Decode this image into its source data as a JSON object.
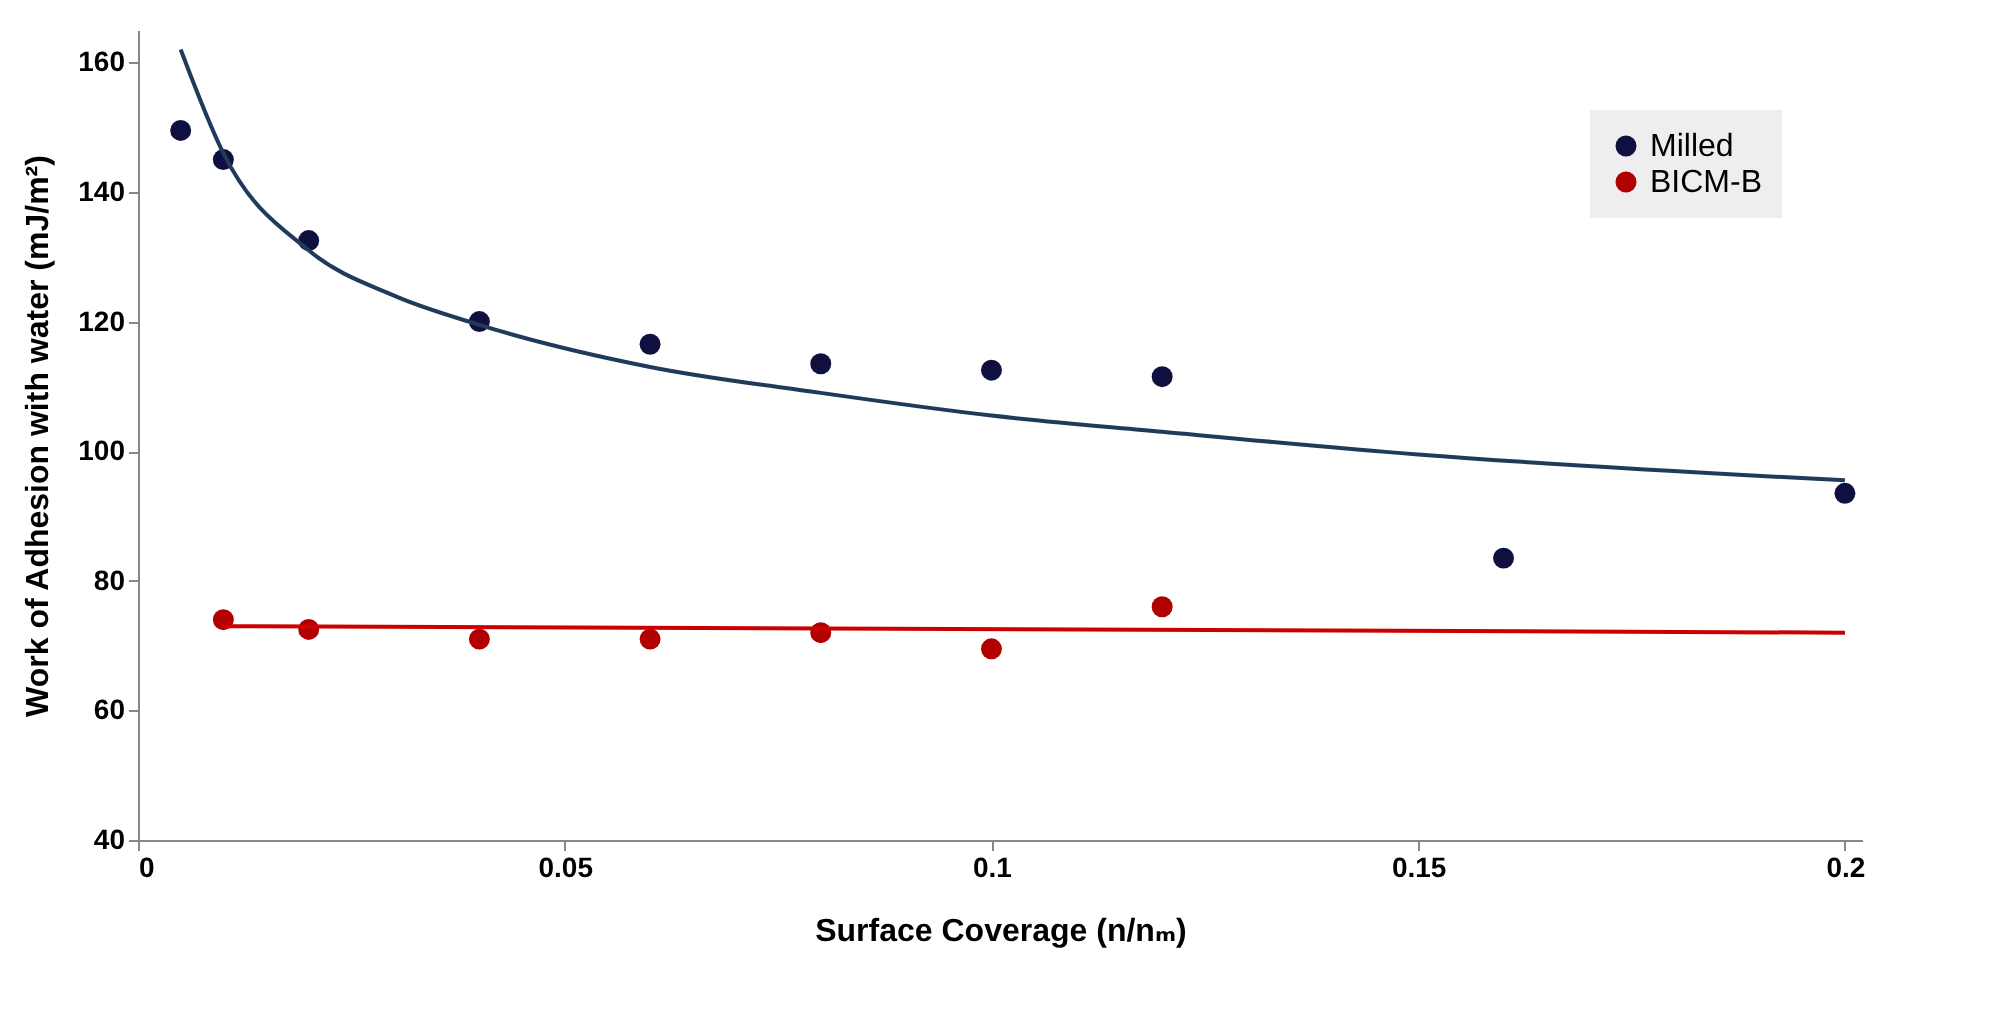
{
  "chart_data": {
    "type": "scatter",
    "xlabel": "Surface Coverage (n/nₘ)",
    "ylabel": "Work of Adhesion with water (mJ/m²)",
    "xlim": [
      0,
      0.202
    ],
    "ylim": [
      40,
      165
    ],
    "xticks": [
      0,
      0.05,
      0.1,
      0.15,
      0.2
    ],
    "yticks": [
      40,
      60,
      80,
      100,
      120,
      140,
      160
    ],
    "grid": false,
    "legend": "top right",
    "marker": "circle",
    "series": [
      {
        "name": "Milled",
        "color": "#101040",
        "x": [
          0.005,
          0.01,
          0.02,
          0.04,
          0.06,
          0.08,
          0.1,
          0.12,
          0.16,
          0.2
        ],
        "values": [
          149.5,
          145,
          132.5,
          120,
          116.5,
          113.5,
          112.5,
          111.5,
          83.5,
          93.5
        ]
      },
      {
        "name": "BICM-B",
        "color": "#b00000",
        "x": [
          0.01,
          0.02,
          0.04,
          0.06,
          0.08,
          0.1,
          0.12
        ],
        "values": [
          74,
          72.5,
          71,
          71,
          72,
          69.5,
          76
        ]
      },
      {
        "type": "line",
        "marker": "none",
        "color": "#1f3a5a",
        "x": [
          0.005,
          0.01,
          0.02,
          0.03,
          0.04,
          0.06,
          0.08,
          0.1,
          0.12,
          0.15,
          0.2
        ],
        "values": [
          162,
          146,
          131,
          124,
          119.5,
          113,
          109,
          105.5,
          103,
          99.5,
          95.5
        ]
      },
      {
        "type": "line",
        "marker": "none",
        "color": "#cc0000",
        "x": [
          0.01,
          0.2
        ],
        "values": [
          73,
          72
        ]
      }
    ]
  }
}
